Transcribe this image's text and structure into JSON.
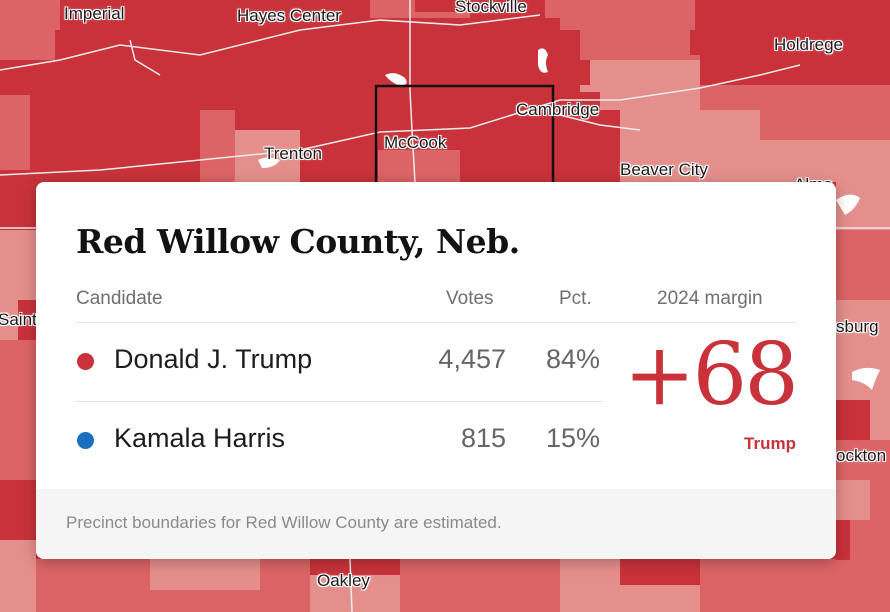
{
  "map": {
    "colors": {
      "trump_dark": "#c9323a",
      "trump_mid": "#dc6466",
      "trump_light": "#e58f8c",
      "road": "#ececec",
      "county_outline": "#111111"
    },
    "place_labels": {
      "imperial": "Imperial",
      "hayes_center": "Hayes Center",
      "stockville": "Stockville",
      "holdrege": "Holdrege",
      "cambridge": "Cambridge",
      "trenton": "Trenton",
      "mccook": "McCook",
      "beaver_city": "Beaver City",
      "alma": "Alma",
      "saint": "Saint",
      "sburg": "sburg",
      "ockton": "ockton",
      "oakley": "Oakley"
    }
  },
  "card": {
    "title": "Red Willow County, Neb.",
    "headers": {
      "candidate": "Candidate",
      "votes": "Votes",
      "pct": "Pct.",
      "margin": "2024 margin"
    },
    "candidates": [
      {
        "name": "Donald J. Trump",
        "votes": "4,457",
        "pct": "84%",
        "color": "#c9323a"
      },
      {
        "name": "Kamala Harris",
        "votes": "815",
        "pct": "15%",
        "color": "#1a6fbf"
      }
    ],
    "margin": {
      "value": "+68",
      "winner": "Trump"
    },
    "footnote": "Precinct boundaries for Red Willow County are estimated."
  }
}
